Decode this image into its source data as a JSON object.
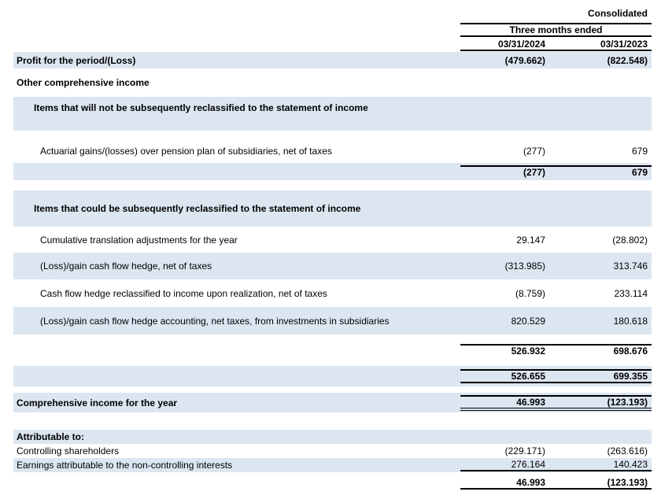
{
  "palette": {
    "row_highlight": "#dce6f1",
    "border": "#000000",
    "text": "#000000",
    "background": "#ffffff"
  },
  "header": {
    "consolidated": "Consolidated",
    "period": "Three months ended",
    "col_2024": "03/31/2024",
    "col_2023": "03/31/2023"
  },
  "rows": {
    "profit": {
      "label": "Profit for the period/(Loss)",
      "v2024": "(479.662)",
      "v2023": "(822.548)"
    },
    "oci": {
      "label": "Other comprehensive income"
    },
    "section_not_reclassified": {
      "label": "Items that will not be subsequently reclassified to the statement of income"
    },
    "actuarial": {
      "label": "Actuarial gains/(losses) over pension plan of subsidiaries, net of taxes",
      "v2024": "(277)",
      "v2023": "679"
    },
    "subtotal_not_reclassified": {
      "v2024": "(277)",
      "v2023": "679"
    },
    "section_could_reclassify": {
      "label": "Items that could be subsequently reclassified to the statement of income"
    },
    "cumulative_translation": {
      "label": "Cumulative translation adjustments for the year",
      "v2024": "29.147",
      "v2023": "(28.802)"
    },
    "cash_flow_hedge": {
      "label": "(Loss)/gain cash flow hedge, net of taxes",
      "v2024": "(313.985)",
      "v2023": "313.746"
    },
    "hedge_reclassified": {
      "label": "Cash flow hedge reclassified to income upon realization, net of taxes",
      "v2024": "(8.759)",
      "v2023": "233.114"
    },
    "hedge_accounting": {
      "label": "(Loss)/gain cash flow hedge accounting, net taxes,  from investments in subsidiaries",
      "v2024": "820.529",
      "v2023": "180.618"
    },
    "subtotal_could_reclassify": {
      "v2024": "526.932",
      "v2023": "698.676"
    },
    "subtotal_other_comprehensive": {
      "v2024": "526.655",
      "v2023": "699.355"
    },
    "comprehensive_income": {
      "label": "Comprehensive income for the year",
      "v2024": "46.993",
      "v2023": "(123.193)"
    },
    "attributable_header": {
      "label": "Attributable to:"
    },
    "controlling": {
      "label": "Controlling shareholders",
      "v2024": "(229.171)",
      "v2023": "(263.616)"
    },
    "non_controlling": {
      "label": "Earnings attributable to the non-controlling interests",
      "v2024": "276.164",
      "v2023": "140.423"
    },
    "total_attributable": {
      "v2024": "46.993",
      "v2023": "(123.193)"
    }
  }
}
